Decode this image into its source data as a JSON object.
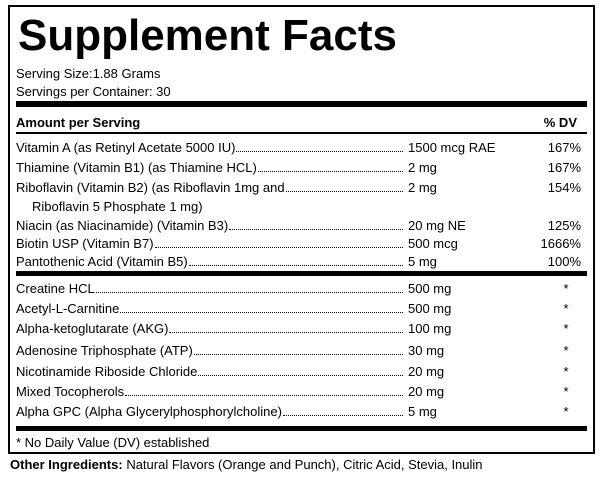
{
  "header": {
    "title": "Supplement Facts",
    "serving_size": "Serving Size:1.88 Grams",
    "servings_per_container": "Servings per Container: 30"
  },
  "columns": {
    "amount": "Amount per Serving",
    "dv": "% DV"
  },
  "vitamins": [
    {
      "name": "Vitamin A (as Retinyl Acetate 5000 IU)",
      "amount": "1500 mcg RAE",
      "dv": "167%"
    },
    {
      "name": "Thiamine (Vitamin B1) (as Thiamine HCL)",
      "amount": "2 mg",
      "dv": "167%"
    },
    {
      "name": "Riboflavin (Vitamin B2) (as Riboflavin 1mg and",
      "name_continued": "Riboflavin 5 Phosphate 1 mg)",
      "amount": "2 mg",
      "dv": "154%"
    },
    {
      "name": "Niacin (as Niacinamide) (Vitamin B3)",
      "amount": "20 mg NE",
      "dv": "125%"
    },
    {
      "name": "Biotin USP (Vitamin B7)",
      "amount": "500 mcg",
      "dv": "1666%"
    },
    {
      "name": "Pantothenic Acid (Vitamin B5)",
      "amount": "5 mg",
      "dv": "100%"
    }
  ],
  "other_nutrients": [
    {
      "name": "Creatine HCL",
      "amount": "500 mg",
      "dv": "*"
    },
    {
      "name": "Acetyl-L-Carnitine",
      "amount": "500 mg",
      "dv": "*"
    },
    {
      "name": "Alpha-ketoglutarate (AKG)",
      "amount": "100 mg",
      "dv": "*"
    },
    {
      "name": "Adenosine Triphosphate (ATP)",
      "amount": "30 mg",
      "dv": "*"
    },
    {
      "name": "Nicotinamide Riboside Chloride",
      "amount": "20 mg",
      "dv": "*"
    },
    {
      "name": "Mixed Tocopherols",
      "amount": "20 mg",
      "dv": "*"
    },
    {
      "name": "Alpha GPC (Alpha Glycerylphosphorylcholine)",
      "amount": "5 mg",
      "dv": "*"
    }
  ],
  "footnote": "* No Daily Value (DV) established",
  "other_ingredients": {
    "label": "Other Ingredients:",
    "text": "Natural Flavors (Orange and Punch), Citric Acid, Stevia, Inulin"
  }
}
